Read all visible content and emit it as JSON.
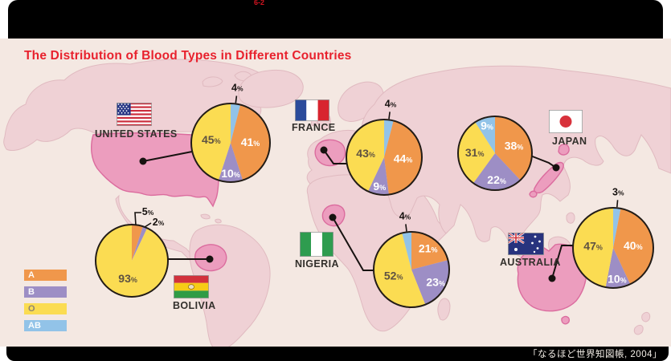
{
  "header": {
    "section_label": "6-2"
  },
  "content": {
    "title": "The Distribution of Blood Types in Different Countries"
  },
  "footer": {
    "source": "「なるほど世界知図帳, 2004」"
  },
  "legend": {
    "items": [
      {
        "type": "A",
        "label": "A",
        "color": "#F0974B"
      },
      {
        "type": "B",
        "label": "B",
        "color": "#9D8EC5"
      },
      {
        "type": "O",
        "label": "O",
        "color": "#FBDC52"
      },
      {
        "type": "AB",
        "label": "AB",
        "color": "#92C3E8"
      }
    ]
  },
  "map": {
    "ocean_color": "#F4E8E2",
    "land_color": "#EFD1D5",
    "highlight_color": "#EC9DBE"
  },
  "chart_data": {
    "type": "pie",
    "unit": "%",
    "title": "The Distribution of Blood Types in Different Countries",
    "legend": [
      "A",
      "B",
      "O",
      "AB"
    ],
    "countries": [
      {
        "name": "UNITED STATES",
        "slice_order": [
          "AB",
          "A",
          "B",
          "O"
        ],
        "values": {
          "A": 41,
          "B": 10,
          "O": 45,
          "AB": 4
        }
      },
      {
        "name": "FRANCE",
        "slice_order": [
          "AB",
          "A",
          "B",
          "O"
        ],
        "values": {
          "A": 44,
          "B": 9,
          "O": 43,
          "AB": 4
        }
      },
      {
        "name": "JAPAN",
        "slice_order": [
          "A",
          "B",
          "O",
          "AB"
        ],
        "values": {
          "A": 38,
          "B": 22,
          "O": 31,
          "AB": 9
        }
      },
      {
        "name": "BOLIVIA",
        "slice_order": [
          "A",
          "B",
          "O"
        ],
        "values": {
          "A": 5,
          "B": 2,
          "O": 93
        }
      },
      {
        "name": "NIGERIA",
        "slice_order": [
          "A",
          "B",
          "O",
          "AB"
        ],
        "values": {
          "A": 21,
          "B": 23,
          "O": 52,
          "AB": 4
        }
      },
      {
        "name": "AUSTRALIA",
        "slice_order": [
          "AB",
          "A",
          "B",
          "O"
        ],
        "values": {
          "A": 40,
          "B": 10,
          "O": 47,
          "AB": 3
        }
      }
    ]
  }
}
